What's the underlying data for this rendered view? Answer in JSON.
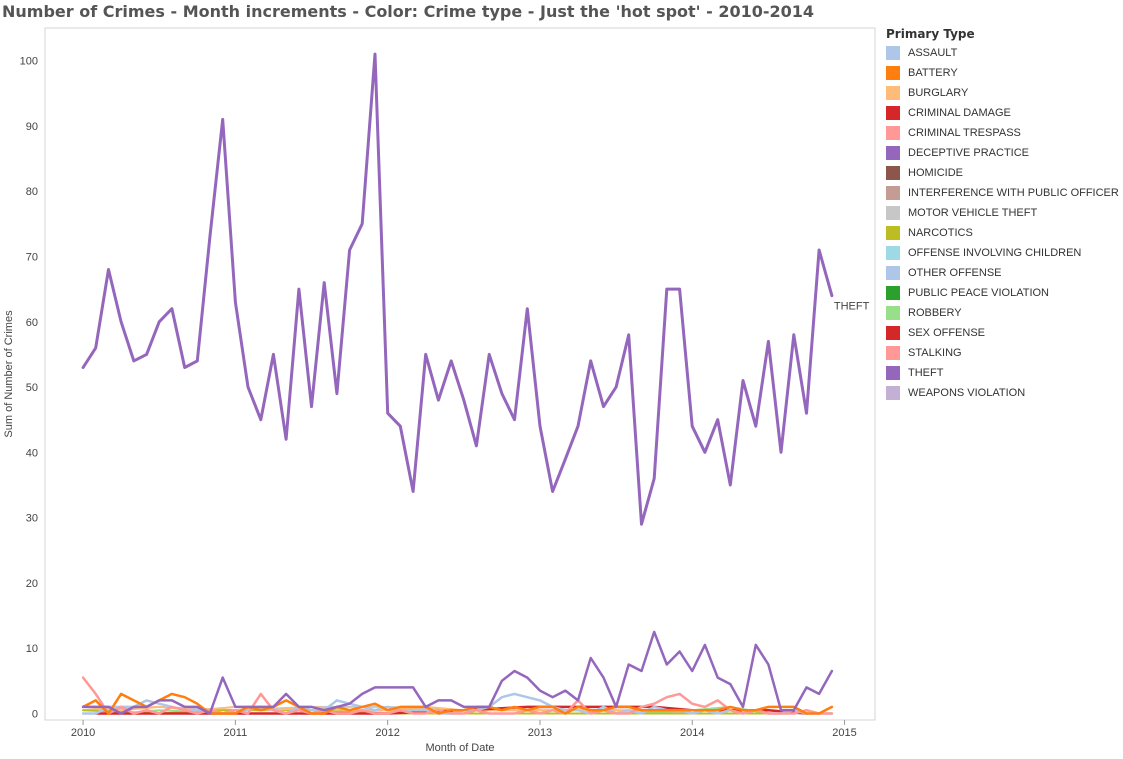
{
  "title": "Number of Crimes - Month increments - Color: Crime type - Just the 'hot spot'  - 2010-2014",
  "legend": {
    "title": "Primary Type",
    "items": [
      {
        "label": "ASSAULT",
        "color": "#aec7e8"
      },
      {
        "label": "BATTERY",
        "color": "#ff7f0e"
      },
      {
        "label": "BURGLARY",
        "color": "#ffbb78"
      },
      {
        "label": "CRIMINAL DAMAGE",
        "color": "#d62728"
      },
      {
        "label": "CRIMINAL TRESPASS",
        "color": "#ff9896"
      },
      {
        "label": "DECEPTIVE PRACTICE",
        "color": "#9467bd"
      },
      {
        "label": "HOMICIDE",
        "color": "#8c564b"
      },
      {
        "label": "INTERFERENCE WITH PUBLIC OFFICER",
        "color": "#c49c94"
      },
      {
        "label": "MOTOR VEHICLE THEFT",
        "color": "#c7c7c7"
      },
      {
        "label": "NARCOTICS",
        "color": "#bcbd22"
      },
      {
        "label": "OFFENSE INVOLVING CHILDREN",
        "color": "#9edae5"
      },
      {
        "label": "OTHER OFFENSE",
        "color": "#aec7e8"
      },
      {
        "label": "PUBLIC PEACE VIOLATION",
        "color": "#2ca02c"
      },
      {
        "label": "ROBBERY",
        "color": "#98df8a"
      },
      {
        "label": "SEX OFFENSE",
        "color": "#d62728"
      },
      {
        "label": "STALKING",
        "color": "#ff9896"
      },
      {
        "label": "THEFT",
        "color": "#9467bd"
      },
      {
        "label": "WEAPONS VIOLATION",
        "color": "#c5b0d5"
      }
    ]
  },
  "chart_data": {
    "type": "line",
    "xlabel": "Month of Date",
    "ylabel": "Sum of Number of Crimes",
    "xlim": [
      2009.75,
      2015.2
    ],
    "ylim": [
      -1,
      105
    ],
    "xticks": [
      2010,
      2011,
      2012,
      2013,
      2014,
      2015
    ],
    "yticks": [
      0,
      10,
      20,
      30,
      40,
      50,
      60,
      70,
      80,
      90,
      100
    ],
    "grid": false,
    "legend_position": "right",
    "end_label": "THEFT",
    "series": [
      {
        "name": "THEFT",
        "color": "#9467bd",
        "width": 3,
        "x": [
          2010.0,
          2010.083,
          2010.167,
          2010.25,
          2010.333,
          2010.417,
          2010.5,
          2010.583,
          2010.667,
          2010.75,
          2010.833,
          2010.917,
          2011.0,
          2011.083,
          2011.167,
          2011.25,
          2011.333,
          2011.417,
          2011.5,
          2011.583,
          2011.667,
          2011.75,
          2011.833,
          2011.917,
          2012.0,
          2012.083,
          2012.167,
          2012.25,
          2012.333,
          2012.417,
          2012.5,
          2012.583,
          2012.667,
          2012.75,
          2012.833,
          2012.917,
          2013.0,
          2013.083,
          2013.167,
          2013.25,
          2013.333,
          2013.417,
          2013.5,
          2013.583,
          2013.667,
          2013.75,
          2013.833,
          2013.917,
          2014.0,
          2014.083,
          2014.167,
          2014.25,
          2014.333,
          2014.417,
          2014.5,
          2014.583,
          2014.667,
          2014.75,
          2014.833,
          2014.917
        ],
        "y": [
          53,
          56,
          68,
          60,
          54,
          55,
          60,
          62,
          53,
          54,
          73,
          91,
          63,
          50,
          45,
          55,
          42,
          65,
          47,
          66,
          49,
          71,
          75,
          101,
          46,
          44,
          34,
          55,
          48,
          54,
          48,
          41,
          55,
          49,
          45,
          62,
          44,
          34,
          39,
          44,
          54,
          47,
          50,
          58,
          29,
          36,
          65,
          65,
          44,
          40,
          45,
          35,
          51,
          44,
          57,
          40,
          58,
          46,
          71,
          64
        ]
      },
      {
        "name": "DECEPTIVE PRACTICE",
        "color": "#9467bd",
        "width": 2.5,
        "x": [
          2010.0,
          2010.083,
          2010.167,
          2010.25,
          2010.333,
          2010.417,
          2010.5,
          2010.583,
          2010.667,
          2010.75,
          2010.833,
          2010.917,
          2011.0,
          2011.083,
          2011.167,
          2011.25,
          2011.333,
          2011.417,
          2011.5,
          2011.583,
          2011.667,
          2011.75,
          2011.833,
          2011.917,
          2012.0,
          2012.083,
          2012.167,
          2012.25,
          2012.333,
          2012.417,
          2012.5,
          2012.583,
          2012.667,
          2012.75,
          2012.833,
          2012.917,
          2013.0,
          2013.083,
          2013.167,
          2013.25,
          2013.333,
          2013.417,
          2013.5,
          2013.583,
          2013.667,
          2013.75,
          2013.833,
          2013.917,
          2014.0,
          2014.083,
          2014.167,
          2014.25,
          2014.333,
          2014.417,
          2014.5,
          2014.583,
          2014.667,
          2014.75,
          2014.833,
          2014.917
        ],
        "y": [
          1,
          1,
          1,
          0,
          1,
          1,
          2,
          2,
          1,
          1,
          0,
          5.5,
          1,
          1,
          1,
          1,
          3,
          1,
          1,
          0.5,
          1,
          1.5,
          3,
          4,
          4,
          4,
          4,
          1,
          2,
          2,
          1,
          1,
          1,
          5,
          6.5,
          5.5,
          3.5,
          2.5,
          3.5,
          2,
          8.5,
          5.5,
          1,
          7.5,
          6.5,
          12.5,
          7.5,
          9.5,
          6.5,
          10.5,
          5.5,
          4.5,
          1,
          10.5,
          7.5,
          0.5,
          0.5,
          4,
          3,
          6.5
        ]
      },
      {
        "name": "BATTERY",
        "color": "#ff7f0e",
        "width": 2.5,
        "x": [
          2010.0,
          2010.083,
          2010.167,
          2010.25,
          2010.333,
          2010.417,
          2010.5,
          2010.583,
          2010.667,
          2010.75,
          2010.833,
          2010.917,
          2011.0,
          2011.083,
          2011.167,
          2011.25,
          2011.333,
          2011.417,
          2011.5,
          2011.583,
          2011.667,
          2011.75,
          2011.833,
          2011.917,
          2012.0,
          2012.083,
          2012.167,
          2012.25,
          2012.333,
          2012.417,
          2012.5,
          2012.583,
          2012.667,
          2012.75,
          2012.833,
          2012.917,
          2013.0,
          2013.083,
          2013.167,
          2013.25,
          2013.333,
          2013.417,
          2013.5,
          2013.583,
          2013.667,
          2013.75,
          2013.833,
          2013.917,
          2014.0,
          2014.083,
          2014.167,
          2014.25,
          2014.333,
          2014.417,
          2014.5,
          2014.583,
          2014.667,
          2014.75,
          2014.833,
          2014.917
        ],
        "y": [
          1,
          2,
          0,
          3,
          2,
          1,
          2,
          3,
          2.5,
          1.5,
          0,
          0,
          0,
          1,
          0.5,
          1,
          2,
          1,
          0,
          0,
          1,
          0.5,
          1,
          1.5,
          0.5,
          1,
          1,
          1,
          0,
          0.5,
          0.5,
          1,
          1,
          0.5,
          1,
          0.5,
          1,
          1,
          0,
          1,
          0.5,
          0.5,
          1,
          1,
          0.5,
          0.5,
          0.5,
          0.5,
          0.5,
          0.5,
          0.5,
          1,
          0.5,
          0.5,
          1,
          1,
          1,
          0,
          0,
          1
        ]
      },
      {
        "name": "CRIMINAL TRESPASS",
        "color": "#ff9896",
        "width": 2.5,
        "x": [
          2010.0,
          2010.083,
          2010.167,
          2010.25,
          2010.333,
          2010.417,
          2010.5,
          2010.583,
          2010.667,
          2010.75,
          2010.833,
          2010.917,
          2011.0,
          2011.083,
          2011.167,
          2011.25,
          2011.333,
          2011.417,
          2011.5,
          2011.583,
          2011.667,
          2011.75,
          2011.833,
          2011.917,
          2012.0,
          2012.083,
          2012.167,
          2012.25,
          2012.333,
          2012.417,
          2012.5,
          2012.583,
          2012.667,
          2012.75,
          2012.833,
          2012.917,
          2013.0,
          2013.083,
          2013.167,
          2013.25,
          2013.333,
          2013.417,
          2013.5,
          2013.583,
          2013.667,
          2013.75,
          2013.833,
          2013.917,
          2014.0,
          2014.083,
          2014.167,
          2014.25,
          2014.333,
          2014.417,
          2014.5,
          2014.583,
          2014.667,
          2014.75,
          2014.833,
          2014.917
        ],
        "y": [
          5.5,
          3,
          0,
          1,
          0,
          0.5,
          0,
          1,
          0.5,
          0,
          0.5,
          0,
          0.5,
          0,
          3,
          0.5,
          0,
          0.5,
          0,
          0.5,
          0,
          0,
          0.5,
          0,
          0,
          0.5,
          0,
          0,
          0.5,
          0,
          0,
          0.5,
          0,
          0,
          0,
          0.5,
          0,
          0.5,
          0,
          2,
          0,
          0.5,
          0,
          0,
          1,
          1.5,
          2.5,
          3,
          1.5,
          1,
          2,
          0.5,
          0,
          0.5,
          0,
          0,
          0,
          0.5,
          0,
          0
        ]
      },
      {
        "name": "ASSAULT",
        "color": "#aec7e8",
        "width": 2.5,
        "x": [
          2010.0,
          2010.083,
          2010.167,
          2010.25,
          2010.333,
          2010.417,
          2010.5,
          2010.583,
          2010.667,
          2010.75,
          2010.833,
          2010.917,
          2011.0,
          2011.083,
          2011.167,
          2011.25,
          2011.333,
          2011.417,
          2011.5,
          2011.583,
          2011.667,
          2011.75,
          2011.833,
          2011.917,
          2012.0,
          2012.083,
          2012.167,
          2012.25,
          2012.333,
          2012.417,
          2012.5,
          2012.583,
          2012.667,
          2012.75,
          2012.833,
          2012.917,
          2013.0,
          2013.083,
          2013.167,
          2013.25,
          2013.333,
          2013.417,
          2013.5,
          2013.583,
          2013.667,
          2013.75,
          2013.833,
          2013.917,
          2014.0,
          2014.083,
          2014.167,
          2014.25,
          2014.333,
          2014.417,
          2014.5,
          2014.583,
          2014.667,
          2014.75,
          2014.833,
          2014.917
        ],
        "y": [
          0,
          0,
          1,
          1,
          1,
          2,
          1.5,
          1,
          0.5,
          0.5,
          0.5,
          0,
          0.5,
          0.5,
          1,
          0.5,
          0,
          1,
          0.5,
          0.5,
          2,
          1.5,
          1,
          0.5,
          1,
          0.5,
          0.5,
          0.5,
          0,
          0,
          0.5,
          0.5,
          1,
          2.5,
          3,
          2.5,
          2,
          1,
          0.5,
          0.5,
          0,
          1,
          0,
          0.5,
          0,
          1,
          0.5,
          0.5,
          0,
          0.5,
          0,
          0.5,
          0,
          0.5,
          0,
          0,
          0.5,
          0,
          0,
          0
        ]
      },
      {
        "name": "CRIMINAL DAMAGE",
        "color": "#d62728",
        "width": 2.5,
        "x": [
          2010.083,
          2010.5,
          2011.0,
          2011.5,
          2012.0,
          2012.5,
          2012.917,
          2013.25,
          2013.5,
          2013.75,
          2014.0,
          2014.25,
          2014.5,
          2014.75
        ],
        "y": [
          0,
          0,
          0,
          0,
          0,
          0.5,
          1,
          1,
          1,
          1,
          0.5,
          0.5,
          0.5,
          0
        ]
      },
      {
        "name": "BURGLARY",
        "color": "#ffbb78",
        "width": 2,
        "x": [
          2010.0,
          2010.25,
          2010.5,
          2010.75,
          2011.0,
          2011.25,
          2011.5,
          2011.75,
          2012.0,
          2012.25,
          2012.5,
          2012.75,
          2013.0,
          2013.25,
          2013.5,
          2013.75,
          2014.0,
          2014.25,
          2014.5,
          2014.75
        ],
        "y": [
          1,
          0.5,
          1,
          0.5,
          1,
          0.5,
          1,
          0.5,
          0.5,
          1,
          0.5,
          0.5,
          0.5,
          0.5,
          0.5,
          0.5,
          0.5,
          0.5,
          0.5,
          0
        ]
      },
      {
        "name": "NARCOTICS",
        "color": "#bcbd22",
        "width": 2,
        "x": [
          2010.0,
          2010.5,
          2010.917,
          2011.5,
          2012.0,
          2012.5,
          2013.0,
          2013.5,
          2014.0,
          2014.5
        ],
        "y": [
          0.5,
          0,
          0.5,
          0.5,
          0,
          0,
          0,
          0,
          0,
          0
        ]
      },
      {
        "name": "ROBBERY",
        "color": "#98df8a",
        "width": 2,
        "x": [
          2010.0,
          2010.083,
          2010.25,
          2010.5,
          2011.0,
          2011.5,
          2012.0,
          2012.5,
          2013.0,
          2013.5,
          2014.0,
          2014.25,
          2014.5
        ],
        "y": [
          1,
          1,
          0,
          0.5,
          0,
          0,
          0.5,
          0,
          0,
          0,
          0.5,
          1,
          0
        ]
      },
      {
        "name": "MOTOR VEHICLE THEFT",
        "color": "#c7c7c7",
        "width": 2,
        "x": [
          2010.0,
          2010.5,
          2011.0,
          2011.5,
          2012.0,
          2012.5,
          2013.0,
          2013.5,
          2014.0,
          2014.5,
          2014.917
        ],
        "y": [
          0.5,
          1,
          0.5,
          1,
          1,
          0.5,
          0.5,
          0.5,
          0,
          0,
          0
        ]
      }
    ]
  }
}
